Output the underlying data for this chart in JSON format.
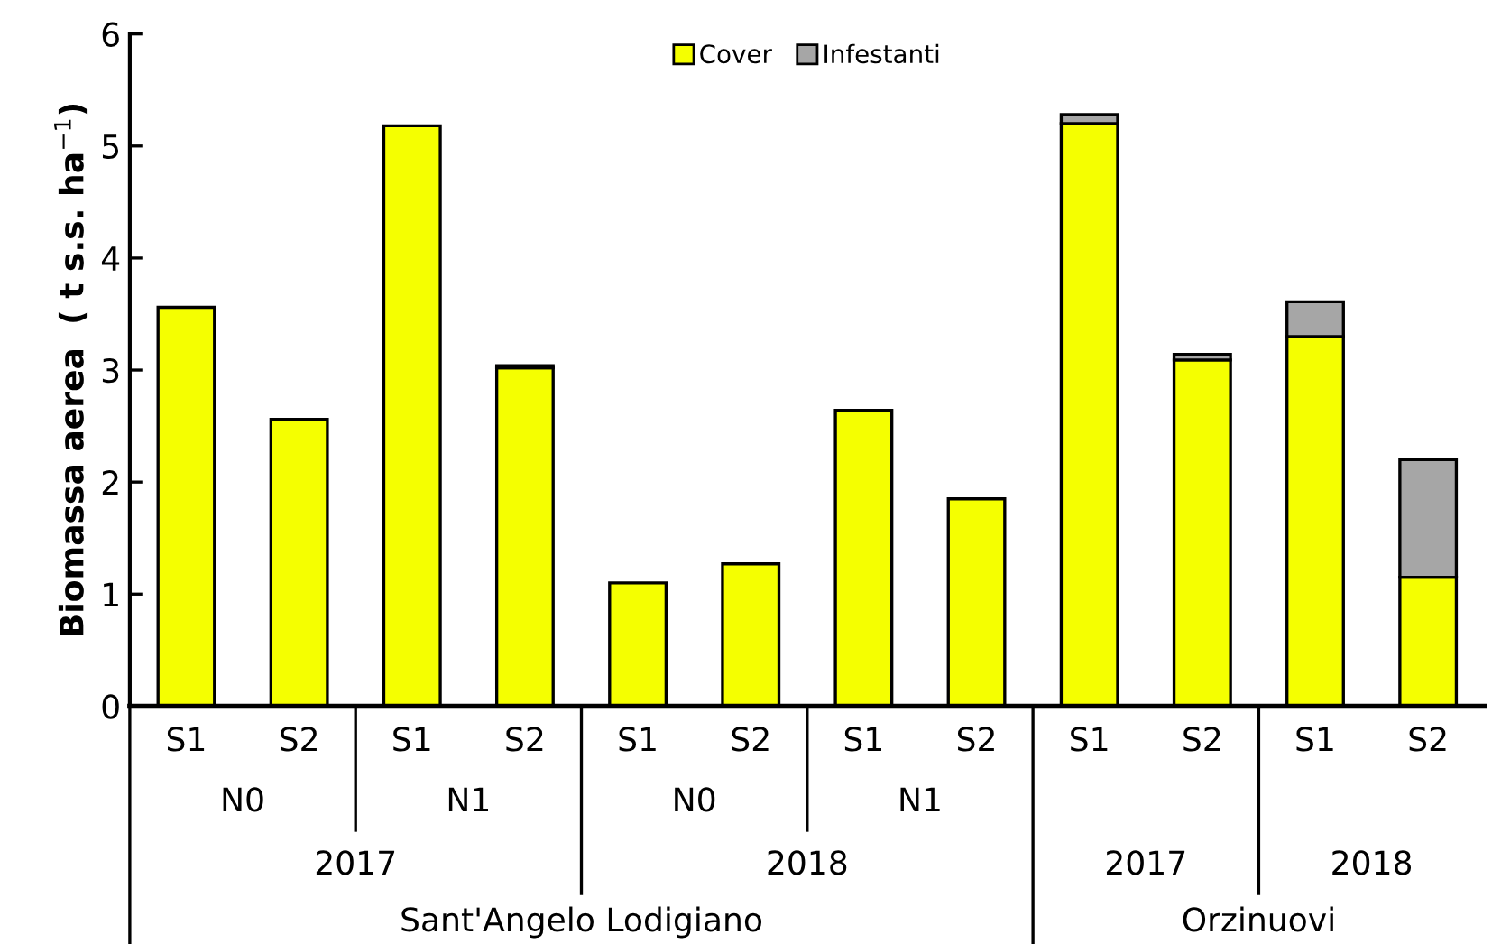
{
  "chart_data": {
    "type": "bar",
    "stacked": true,
    "ylabel": "Biomassa aerea  ( t s.s. ha$^{−1}$)",
    "categories": [
      "S1",
      "S2",
      "S1",
      "S2",
      "S1",
      "S2",
      "S1",
      "S2",
      "S1",
      "S2",
      "S1",
      "S2"
    ],
    "series": [
      {
        "name": "Cover",
        "color": "#f5ff00",
        "values": [
          3.56,
          2.56,
          5.18,
          3.02,
          1.1,
          1.27,
          2.64,
          1.85,
          5.2,
          3.09,
          3.3,
          1.15
        ]
      },
      {
        "name": "Infestanti",
        "color": "#a6a6a6",
        "values": [
          null,
          null,
          null,
          0.02,
          null,
          null,
          null,
          null,
          0.08,
          0.05,
          0.31,
          1.05
        ]
      }
    ],
    "annotations": [
      "N0",
      "N1",
      "N0",
      "N1",
      "2017",
      "2018",
      "2017",
      "2018",
      "Sant'Angelo Lodigiano",
      "Orzinuovi"
    ],
    "ylim": [
      0,
      6
    ],
    "yticks": [
      0,
      1,
      2,
      3,
      4,
      5,
      6
    ],
    "grid": false,
    "legend": "top"
  }
}
